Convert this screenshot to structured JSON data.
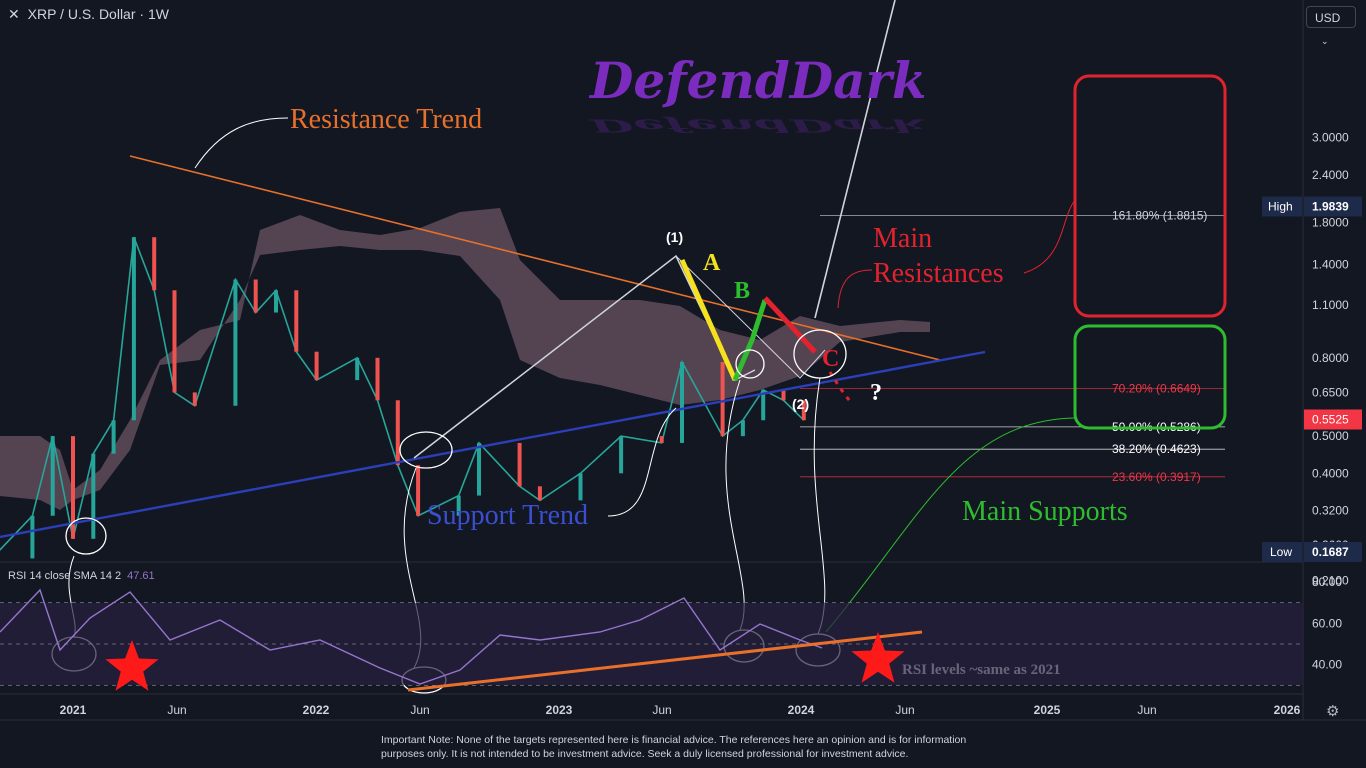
{
  "header": {
    "close_glyph": "✕",
    "title": "XRP / U.S. Dollar · 1W"
  },
  "currency_button": {
    "label": "USD",
    "icon": "chevron-down-icon"
  },
  "watermark": "DefendDark",
  "chart_data": {
    "type": "line",
    "symbol": "XRP / U.S. Dollar",
    "interval": "1W",
    "price_scale": "log",
    "ylim": [
      0.15,
      3.4
    ],
    "price_ticks": [
      "3.0000",
      "2.4000",
      "1.8000",
      "1.4000",
      "1.1000",
      "0.8000",
      "0.6500",
      "0.5000",
      "0.4000",
      "0.3200",
      "0.2600",
      "0.2100"
    ],
    "time_ticks": [
      "2021",
      "Jun",
      "2022",
      "Jun",
      "2023",
      "Jun",
      "2024",
      "Jun",
      "2025",
      "Jun",
      "2026"
    ],
    "high": {
      "label": "High",
      "value": "1.9839"
    },
    "low": {
      "label": "Low",
      "value": "0.1687"
    },
    "last_price": "0.5525",
    "price_path": [
      {
        "t": "2020-09",
        "p": 0.24
      },
      {
        "t": "2020-11",
        "p": 0.31
      },
      {
        "t": "2020-12",
        "p": 0.5
      },
      {
        "t": "2021-01",
        "p": 0.27
      },
      {
        "t": "2021-02",
        "p": 0.45
      },
      {
        "t": "2021-03",
        "p": 0.55
      },
      {
        "t": "2021-04",
        "p": 1.65
      },
      {
        "t": "2021-05",
        "p": 1.2
      },
      {
        "t": "2021-06",
        "p": 0.65
      },
      {
        "t": "2021-07",
        "p": 0.6
      },
      {
        "t": "2021-09",
        "p": 1.28
      },
      {
        "t": "2021-10",
        "p": 1.05
      },
      {
        "t": "2021-11",
        "p": 1.2
      },
      {
        "t": "2021-12",
        "p": 0.83
      },
      {
        "t": "2022-01",
        "p": 0.7
      },
      {
        "t": "2022-03",
        "p": 0.8
      },
      {
        "t": "2022-04",
        "p": 0.62
      },
      {
        "t": "2022-05",
        "p": 0.42
      },
      {
        "t": "2022-06",
        "p": 0.31
      },
      {
        "t": "2022-08",
        "p": 0.35
      },
      {
        "t": "2022-09",
        "p": 0.48
      },
      {
        "t": "2022-11",
        "p": 0.37
      },
      {
        "t": "2022-12",
        "p": 0.34
      },
      {
        "t": "2023-02",
        "p": 0.4
      },
      {
        "t": "2023-04",
        "p": 0.5
      },
      {
        "t": "2023-06",
        "p": 0.48
      },
      {
        "t": "2023-07",
        "p": 0.78
      },
      {
        "t": "2023-09",
        "p": 0.5
      },
      {
        "t": "2023-10",
        "p": 0.55
      },
      {
        "t": "2023-11",
        "p": 0.66
      },
      {
        "t": "2023-12",
        "p": 0.62
      },
      {
        "t": "2024-01",
        "p": 0.55
      }
    ],
    "fib_levels": [
      {
        "label": "161.80% (1.8815)",
        "price": 1.8815,
        "color": "#d1d4dc"
      },
      {
        "label": "70.20% (0.6649)",
        "price": 0.6649,
        "color": "#f23645"
      },
      {
        "label": "50.00% (0.5286)",
        "price": 0.5286,
        "color": "#ffffff"
      },
      {
        "label": "38.20% (0.4623)",
        "price": 0.4623,
        "color": "#ffffff"
      },
      {
        "label": "23.60% (0.3917)",
        "price": 0.3917,
        "color": "#f23645"
      }
    ],
    "annotations": {
      "resistance_trend": "Resistance Trend",
      "support_trend": "Support Trend",
      "main_resistances_1": "Main",
      "main_resistances_2": "Resistances",
      "main_supports": "Main Supports",
      "wave_1": "(1)",
      "wave_2": "(2)",
      "wave_a": "A",
      "wave_b": "B",
      "wave_c": "C",
      "question": "?",
      "rsi_note": "RSI levels ~same as 2021"
    },
    "rsi": {
      "label": "RSI 14 close SMA 14 2",
      "value": "47.61",
      "ticks": [
        "80.00",
        "60.00",
        "40.00"
      ],
      "ylim": [
        25,
        95
      ],
      "color": "#9575cd"
    }
  },
  "colors": {
    "background": "#131722",
    "resistance": "#e8702a",
    "support": "#2b3fb8",
    "wave_a": "#f5e11d",
    "wave_b": "#2ebd2e",
    "wave_c": "#e0232e",
    "last_price_bg": "#f23645",
    "rsi_trend": "#e8702a"
  },
  "disclaimer": {
    "line1": "Important Note: None of the targets represented here is financial advice. The references here an opinion and is for information",
    "line2": "purposes only. It is not intended to be investment advice. Seek a duly licensed professional for investment advice."
  },
  "settings_icon": "gear-icon"
}
